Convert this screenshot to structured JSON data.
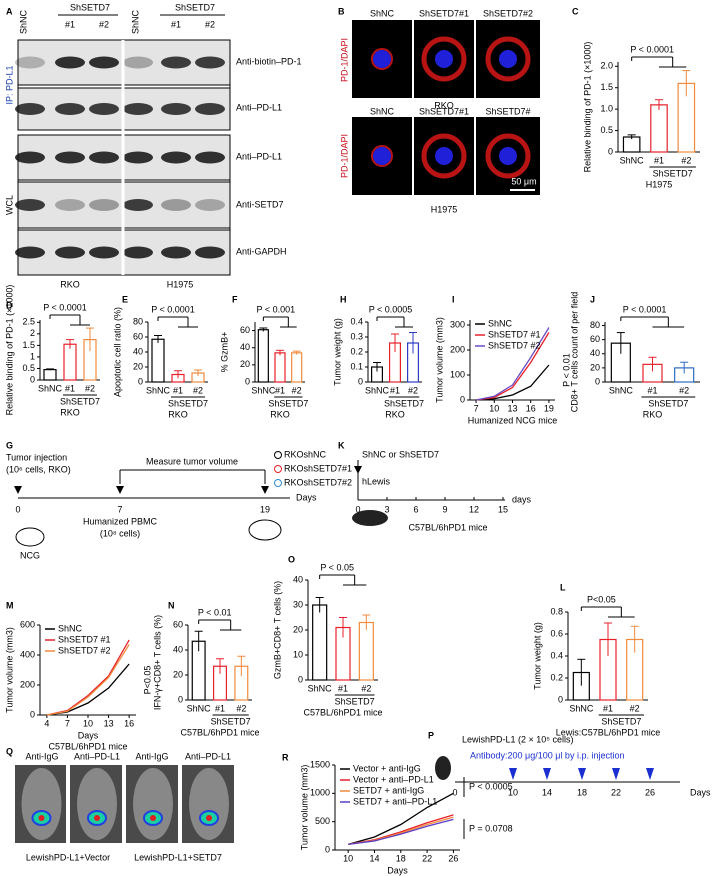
{
  "panel_a": {
    "texts": [
      "A",
      "ShNC",
      "ShSETD7",
      "#1",
      "#2",
      "ShNC",
      "ShSETD7",
      "#1",
      "#2",
      "Anti-biotin–PD-1",
      "Anti–PD-L1",
      "Anti–PD-L1",
      "Anti-SETD7",
      "Anti-GAPDH",
      "IP: PD-L1",
      "WCL",
      "RKO",
      "H1975"
    ]
  },
  "panel_b": {
    "texts": [
      "B",
      "ShNC",
      "ShSETD7#1",
      "ShSETD7#2",
      "PD-1/DAPI",
      "RKO",
      "ShNC",
      "ShSETD7#1",
      "ShSETD7#",
      "PD-1/DAPI",
      "50 μm",
      "H1975"
    ]
  },
  "panel_g": {
    "texts": [
      "G",
      "Tumor injection",
      "(10⁶ cells, RKO)",
      "Measure tumor volume",
      "RKOshNC",
      "RKOshSETD7#1",
      "RKOshSETD7#2",
      "0",
      "7",
      "19",
      "Days",
      "Humanized PBMC",
      "(10⁸ cells)",
      "NCG"
    ]
  },
  "panel_k": {
    "texts": [
      "K",
      "ShNC or ShSETD7",
      "hLewis",
      "0",
      "3",
      "6",
      "9",
      "12",
      "15",
      "days",
      "C57BL/6hPD1 mice"
    ]
  },
  "panel_p": {
    "texts": [
      "P",
      "LewishPD-L1 (2 × 10⁵ cells)",
      "Antibody:200 μg/100 μl by i.p. injection",
      "0",
      "10",
      "14",
      "18",
      "22",
      "26",
      "Days"
    ]
  },
  "panel_q": {
    "texts": [
      "Q",
      "Anti-IgG",
      "Anti–PD-L1",
      "Anti-IgG",
      "Anti–PD-L1",
      "LewishPD-L1+Vector",
      "LewishPD-L1+SETD7"
    ]
  },
  "chart_data": [
    {
      "panel": "C",
      "type": "bar",
      "ylabel": "Relative binding of PD-1 (×1000)",
      "categories": [
        "ShNC",
        "#1",
        "#2"
      ],
      "values": [
        0.35,
        1.1,
        1.6
      ],
      "errors": [
        0.05,
        0.12,
        0.3
      ],
      "colors": [
        "#000000",
        "#e8202a",
        "#f08a3c"
      ],
      "ylim": [
        0,
        2.1
      ],
      "yticks": [
        0,
        0.5,
        {
          "value": 1,
          "label": "1.0"
        },
        1.5,
        {
          "value": 2,
          "label": "2.0"
        }
      ],
      "group_label": "ShSETD7",
      "sublabel": "H1975",
      "annotation": "P < 0.0001"
    },
    {
      "panel": "D",
      "type": "bar",
      "ylabel": "Relative binding of PD-1 (×1000)",
      "categories": [
        "ShNC",
        "#1",
        "#2"
      ],
      "values": [
        0.45,
        1.55,
        1.75
      ],
      "errors": [
        0.03,
        0.2,
        0.5
      ],
      "colors": [
        "#000000",
        "#e8202a",
        "#f08a3c"
      ],
      "ylim": [
        0,
        2.6
      ],
      "yticks": [
        0,
        0.5,
        1,
        1.5,
        2,
        2.5
      ],
      "group_label": "ShSETD7",
      "sublabel": "RKO",
      "annotation": "P < 0.0001"
    },
    {
      "panel": "E",
      "type": "bar",
      "ylabel": "Apoptotic cell ratio (%)",
      "categories": [
        "ShNC",
        "#1",
        "#2"
      ],
      "values": [
        57,
        10,
        12
      ],
      "errors": [
        5,
        5,
        4
      ],
      "colors": [
        "#000000",
        "#e8202a",
        "#f08a3c"
      ],
      "ylim": [
        0,
        80
      ],
      "yticks": [
        0,
        20,
        40,
        60,
        80
      ],
      "group_label": "ShSETD7",
      "sublabel": "RKO",
      "annotation": "P < 0.0001"
    },
    {
      "panel": "F",
      "type": "bar",
      "ylabel": "% GzmB+",
      "categories": [
        "ShNC",
        "#1",
        "#2"
      ],
      "values": [
        61,
        34,
        34
      ],
      "errors": [
        2,
        3,
        2
      ],
      "colors": [
        "#000000",
        "#e8202a",
        "#f08a3c"
      ],
      "ylim": [
        0,
        70
      ],
      "yticks": [
        0,
        20,
        40,
        60
      ],
      "group_label": "ShSETD7",
      "sublabel": "RKO",
      "annotation": "P < 0.001"
    },
    {
      "panel": "H",
      "type": "bar",
      "ylabel": "Tumor weight (g)",
      "categories": [
        "ShNC",
        "#1",
        "#2"
      ],
      "values": [
        0.1,
        0.26,
        0.26
      ],
      "errors": [
        0.03,
        0.06,
        0.07
      ],
      "colors": [
        "#000000",
        "#e8202a",
        "#2b3cc4"
      ],
      "ylim": [
        0,
        0.4
      ],
      "yticks": [
        0,
        0.1,
        0.2,
        0.3,
        0.4
      ],
      "group_label": "ShSETD7",
      "sublabel": "RKO",
      "annotation": "P < 0.0005"
    },
    {
      "panel": "I",
      "type": "line",
      "ylabel": "Tumor volume (mm3)",
      "x": [
        7,
        10,
        13,
        16,
        19
      ],
      "xlim": [
        6,
        20
      ],
      "xticks": [
        7,
        10,
        13,
        16,
        19
      ],
      "ylim": [
        0,
        320
      ],
      "yticks": [
        0,
        100,
        200,
        300
      ],
      "xlabel": "Humanized NCG mice",
      "series": [
        {
          "name": "ShNC",
          "color": "#000000",
          "values": [
            0,
            5,
            20,
            55,
            140
          ]
        },
        {
          "name": "ShSETD7 #1",
          "color": "#e8202a",
          "values": [
            0,
            10,
            50,
            150,
            270
          ]
        },
        {
          "name": "ShSETD7 #2",
          "color": "#6a4cc4",
          "values": [
            0,
            15,
            60,
            170,
            290
          ]
        }
      ],
      "annotations": [
        "P < 0.01"
      ]
    },
    {
      "panel": "J",
      "type": "bar",
      "ylabel": "CD8+ T cells count of per field",
      "categories": [
        "ShNC",
        "#1",
        "#2"
      ],
      "values": [
        55,
        25,
        20
      ],
      "errors": [
        15,
        10,
        8
      ],
      "colors": [
        "#000000",
        "#e8202a",
        "#2b6cc4"
      ],
      "ylim": [
        0,
        85
      ],
      "yticks": [
        0,
        20,
        40,
        60,
        80
      ],
      "group_label": "ShSETD7",
      "sublabel": "RKO",
      "annotation": "P < 0.0001"
    },
    {
      "panel": "L",
      "type": "bar",
      "ylabel": "Tumor weight (g)",
      "categories": [
        "ShNC",
        "#1",
        "#2"
      ],
      "values": [
        0.25,
        0.55,
        0.55
      ],
      "errors": [
        0.12,
        0.15,
        0.12
      ],
      "colors": [
        "#000000",
        "#e8202a",
        "#f08a3c"
      ],
      "ylim": [
        0,
        0.8
      ],
      "yticks": [
        0,
        0.2,
        0.4,
        0.6,
        0.8
      ],
      "group_label": "ShSETD7",
      "sublabel": "Lewis:C57BL/6hPD1 mice",
      "annotation": "P<0.05"
    },
    {
      "panel": "M",
      "type": "line",
      "ylabel": "Tumor volume (mm3)",
      "x": [
        4,
        7,
        10,
        13,
        16
      ],
      "xlim": [
        3,
        17
      ],
      "xticks": [
        4,
        7,
        10,
        13,
        16
      ],
      "ylim": [
        0,
        600
      ],
      "yticks": [
        0,
        200,
        400,
        600
      ],
      "xlabel": "Days",
      "sublabel": "C57BL/6hPD1 mice",
      "series": [
        {
          "name": "ShNC",
          "color": "#000000",
          "values": [
            0,
            20,
            80,
            180,
            340
          ]
        },
        {
          "name": "ShSETD7 #1",
          "color": "#e8202a",
          "values": [
            0,
            30,
            130,
            260,
            500
          ]
        },
        {
          "name": "ShSETD7 #2",
          "color": "#f08a3c",
          "values": [
            0,
            25,
            120,
            250,
            470
          ]
        }
      ],
      "annotations": [
        "P<0.05"
      ]
    },
    {
      "panel": "N",
      "type": "bar",
      "ylabel": "IFN-γ+CD8+ T cells (%)",
      "categories": [
        "ShNC",
        "#1",
        "#2"
      ],
      "values": [
        47,
        27,
        27
      ],
      "errors": [
        8,
        6,
        8
      ],
      "colors": [
        "#000000",
        "#e8202a",
        "#f08a3c"
      ],
      "ylim": [
        0,
        60
      ],
      "yticks": [
        0,
        20,
        40,
        60
      ],
      "group_label": "ShSETD7",
      "sublabel": "C57BL/6hPD1 mice",
      "annotation": "P < 0.01"
    },
    {
      "panel": "O",
      "type": "bar",
      "ylabel": "GzmB+CD8+ T cells (%)",
      "categories": [
        "ShNC",
        "#1",
        "#2"
      ],
      "values": [
        30,
        21,
        23
      ],
      "errors": [
        3,
        4,
        3
      ],
      "colors": [
        "#000000",
        "#e8202a",
        "#f08a3c"
      ],
      "ylim": [
        0,
        40
      ],
      "yticks": [
        0,
        10,
        20,
        30,
        40
      ],
      "group_label": "ShSETD7",
      "sublabel": "C57BL/6hPD1 mice",
      "annotation": "P < 0.05"
    },
    {
      "panel": "R",
      "type": "line",
      "ylabel": "Tumor volume (mm3)",
      "x": [
        10,
        14,
        18,
        22,
        26
      ],
      "xlim": [
        8,
        27
      ],
      "xticks": [
        10,
        14,
        18,
        22,
        26
      ],
      "ylim": [
        0,
        1500
      ],
      "yticks": [
        0,
        500,
        1000,
        1500
      ],
      "xlabel": "Days",
      "series": [
        {
          "name": "Vector + anti-IgG",
          "color": "#000000",
          "values": [
            100,
            230,
            450,
            750,
            1000
          ]
        },
        {
          "name": "Vector + anti–PD-L1",
          "color": "#e8202a",
          "values": [
            100,
            180,
            320,
            480,
            620
          ]
        },
        {
          "name": "SETD7 + anti-IgG",
          "color": "#f08a3c",
          "values": [
            100,
            170,
            300,
            450,
            580
          ]
        },
        {
          "name": "SETD7 + anti–PD-L1",
          "color": "#5a3cc4",
          "values": [
            100,
            160,
            280,
            420,
            540
          ]
        }
      ],
      "annotations": [
        "P < 0.0005",
        "P = 0.0708"
      ]
    }
  ]
}
